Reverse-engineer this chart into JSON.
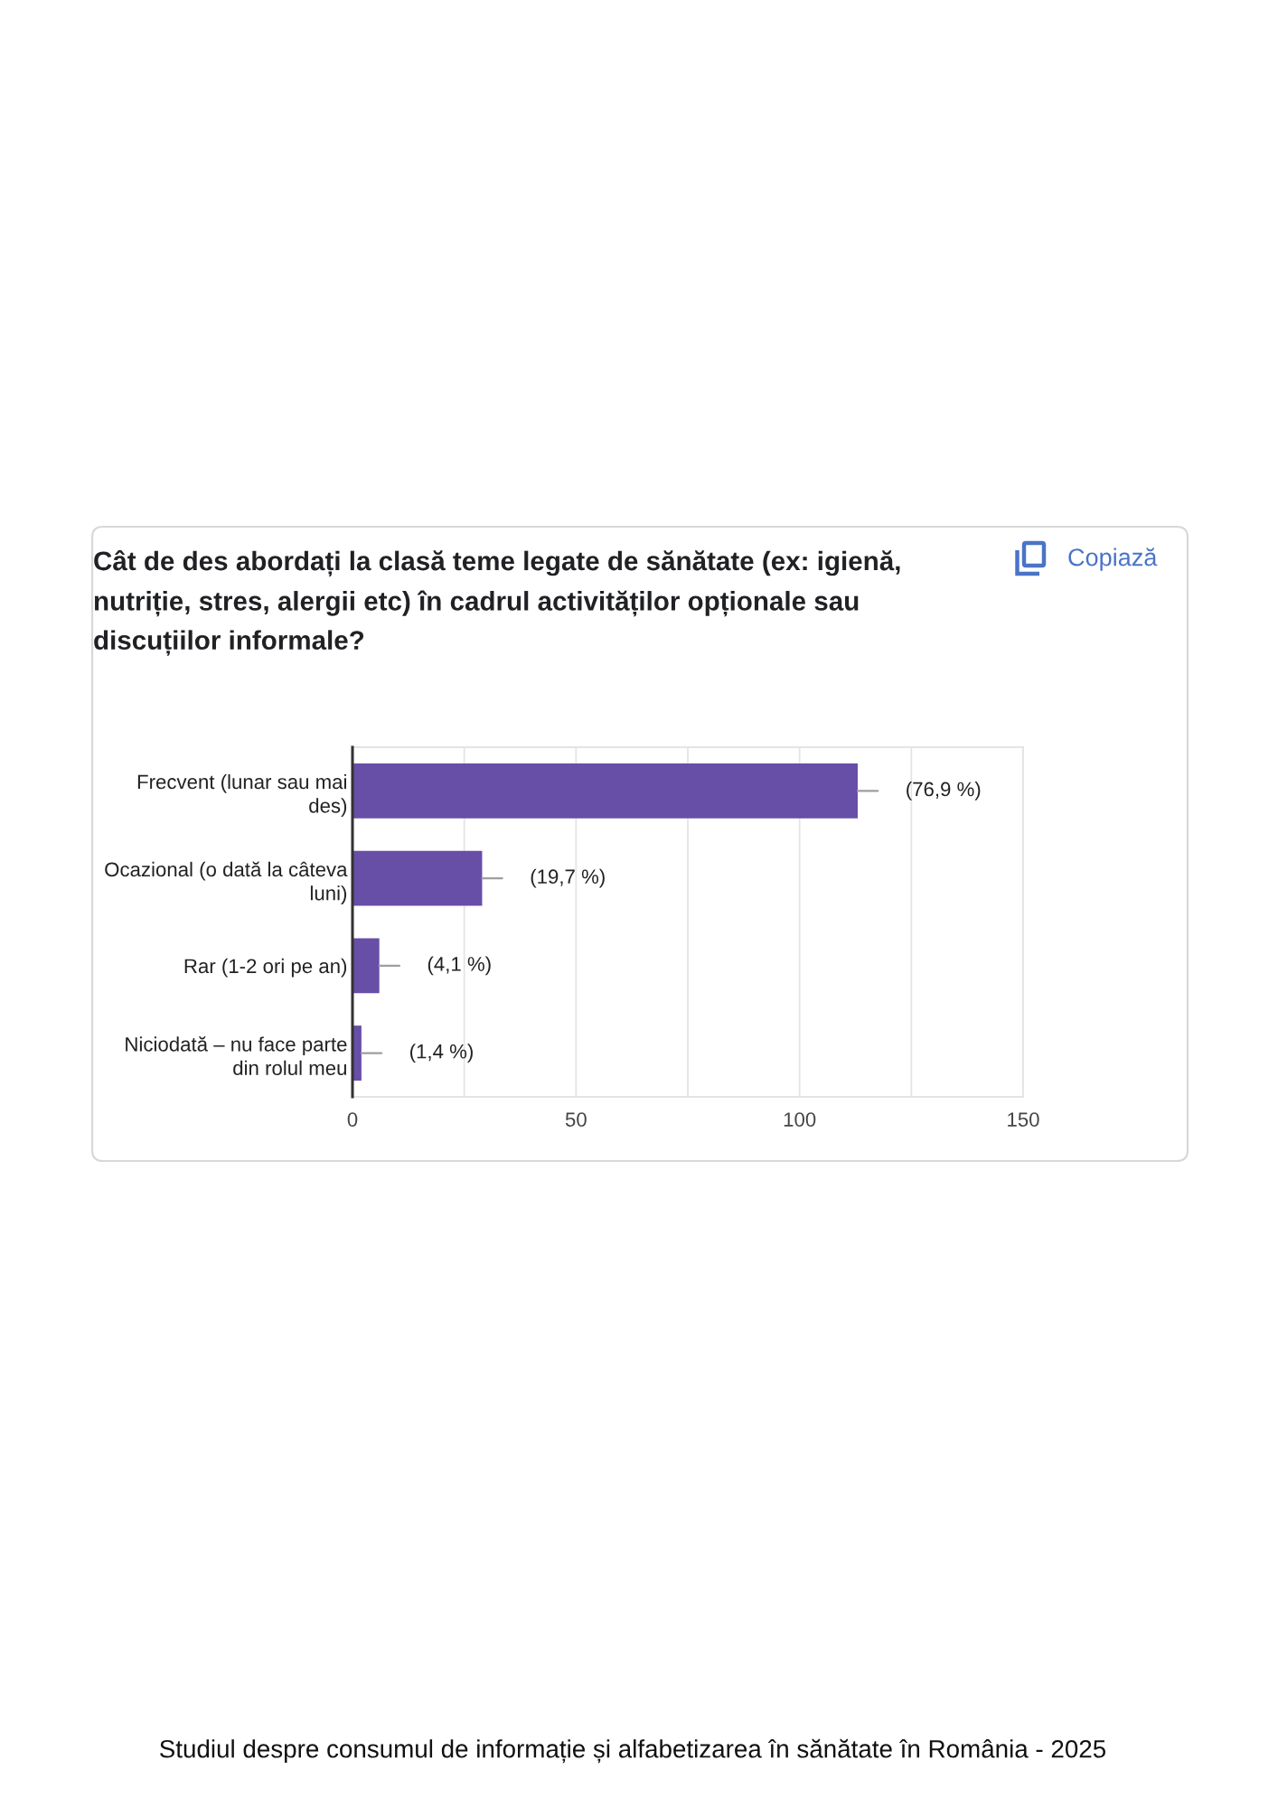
{
  "chart_data": {
    "type": "bar",
    "orientation": "horizontal",
    "title": "Cât de des abordați la clasă teme legate de sănătate (ex: igienă,\nnutriție, stres, alergii etc) în cadrul activităților opționale sau\ndiscuțiilor informale?",
    "categories": [
      "Frecvent (lunar sau mai\ndes)",
      "Ocazional (o dată la câteva\nluni)",
      "Rar (1-2 ori pe an)",
      "Niciodată – nu face parte\ndin rolul meu"
    ],
    "values": [
      113,
      29,
      6,
      2
    ],
    "color": "#674ea7",
    "xlim": [
      0,
      150
    ],
    "xticks": [
      0,
      {
        "value": 25,
        "label": null
      },
      50,
      {
        "value": 75,
        "label": null
      },
      100,
      {
        "value": 125,
        "label": null
      },
      150
    ],
    "grid": "x",
    "annotations": [
      {
        "text": "(76,9 %)",
        "x": 113,
        "y": "Frecvent (lunar sau mai\ndes)"
      },
      {
        "text": "(19,7 %)",
        "x": 29,
        "y": "Ocazional (o dată la câteva\nluni)"
      },
      {
        "text": "(4,1 %)",
        "x": 6,
        "y": "Rar (1-2 ori pe an)"
      },
      {
        "text": "(1,4 %)",
        "x": 2,
        "y": "Niciodată – nu face parte\ndin rolul meu"
      },
      "Copiază",
      "Studiul despre consumul de informație și alfabetizarea în sănătate în România - 2025"
    ]
  }
}
